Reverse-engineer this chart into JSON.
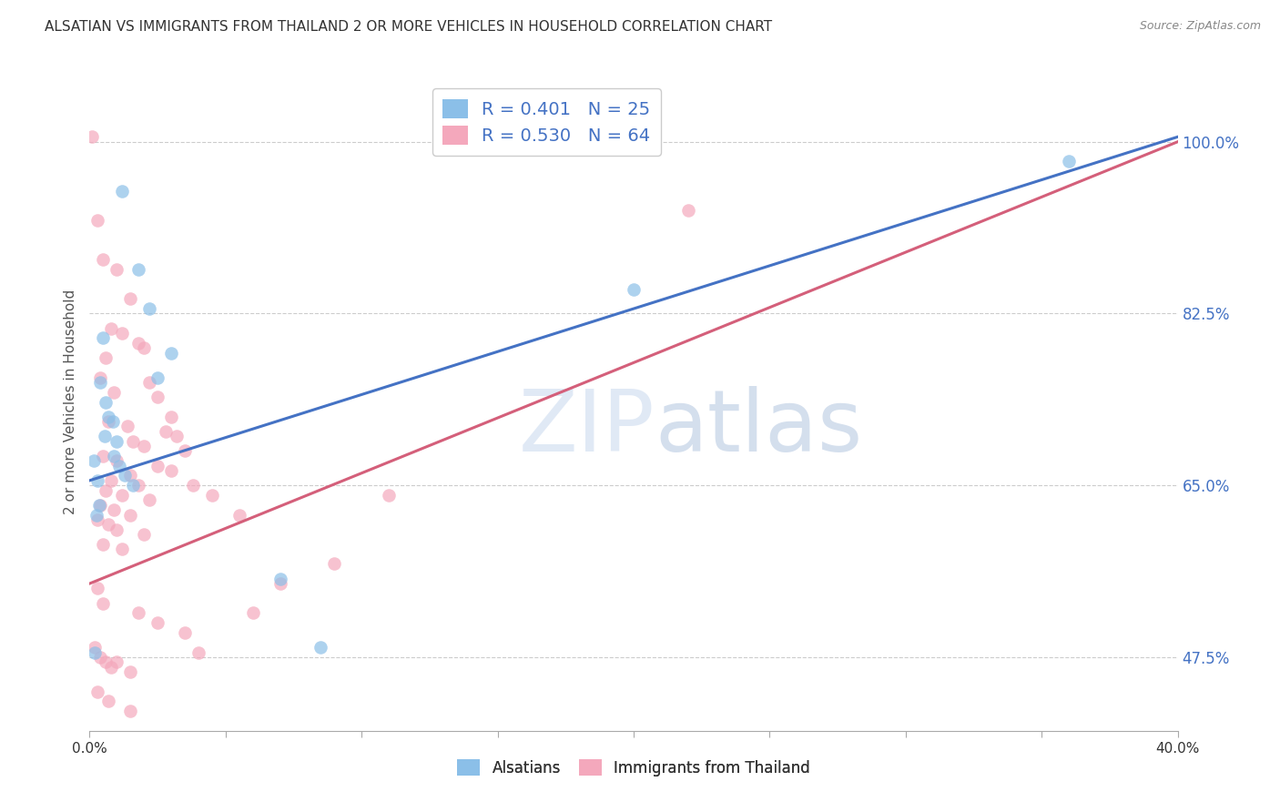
{
  "title": "ALSATIAN VS IMMIGRANTS FROM THAILAND 2 OR MORE VEHICLES IN HOUSEHOLD CORRELATION CHART",
  "source": "Source: ZipAtlas.com",
  "ylabel": "2 or more Vehicles in Household",
  "legend_label1": "Alsatians",
  "legend_label2": "Immigrants from Thailand",
  "R1": 0.401,
  "N1": 25,
  "R2": 0.53,
  "N2": 64,
  "color1": "#8BBFE8",
  "color2": "#F4A8BC",
  "line_color1": "#4472C4",
  "line_color2": "#D45F7A",
  "xlim": [
    0.0,
    40.0
  ],
  "ylim": [
    40.0,
    107.0
  ],
  "yticks": [
    47.5,
    65.0,
    82.5,
    100.0
  ],
  "xticks": [
    0.0,
    5.0,
    10.0,
    15.0,
    20.0,
    25.0,
    30.0,
    35.0,
    40.0
  ],
  "watermark_zip": "ZIP",
  "watermark_atlas": "atlas",
  "blue_scatter": [
    [
      0.15,
      67.5
    ],
    [
      0.5,
      80.0
    ],
    [
      1.2,
      95.0
    ],
    [
      1.8,
      87.0
    ],
    [
      2.2,
      83.0
    ],
    [
      0.3,
      65.5
    ],
    [
      0.4,
      75.5
    ],
    [
      0.55,
      70.0
    ],
    [
      0.6,
      73.5
    ],
    [
      0.7,
      72.0
    ],
    [
      0.85,
      71.5
    ],
    [
      1.0,
      69.5
    ],
    [
      0.9,
      68.0
    ],
    [
      1.1,
      67.0
    ],
    [
      1.3,
      66.0
    ],
    [
      1.6,
      65.0
    ],
    [
      2.5,
      76.0
    ],
    [
      3.0,
      78.5
    ],
    [
      0.35,
      63.0
    ],
    [
      0.25,
      62.0
    ],
    [
      0.2,
      48.0
    ],
    [
      7.0,
      55.5
    ],
    [
      8.5,
      48.5
    ],
    [
      20.0,
      85.0
    ],
    [
      36.0,
      98.0
    ]
  ],
  "pink_scatter": [
    [
      0.1,
      100.5
    ],
    [
      0.3,
      92.0
    ],
    [
      0.5,
      88.0
    ],
    [
      1.0,
      87.0
    ],
    [
      1.5,
      84.0
    ],
    [
      0.8,
      81.0
    ],
    [
      1.2,
      80.5
    ],
    [
      1.8,
      79.5
    ],
    [
      2.0,
      79.0
    ],
    [
      0.6,
      78.0
    ],
    [
      0.4,
      76.0
    ],
    [
      2.2,
      75.5
    ],
    [
      0.9,
      74.5
    ],
    [
      2.5,
      74.0
    ],
    [
      3.0,
      72.0
    ],
    [
      0.7,
      71.5
    ],
    [
      1.4,
      71.0
    ],
    [
      2.8,
      70.5
    ],
    [
      3.2,
      70.0
    ],
    [
      1.6,
      69.5
    ],
    [
      2.0,
      69.0
    ],
    [
      3.5,
      68.5
    ],
    [
      0.5,
      68.0
    ],
    [
      1.0,
      67.5
    ],
    [
      2.5,
      67.0
    ],
    [
      3.0,
      66.5
    ],
    [
      1.5,
      66.0
    ],
    [
      0.8,
      65.5
    ],
    [
      1.8,
      65.0
    ],
    [
      3.8,
      65.0
    ],
    [
      0.6,
      64.5
    ],
    [
      1.2,
      64.0
    ],
    [
      2.2,
      63.5
    ],
    [
      0.4,
      63.0
    ],
    [
      0.9,
      62.5
    ],
    [
      1.5,
      62.0
    ],
    [
      0.3,
      61.5
    ],
    [
      0.7,
      61.0
    ],
    [
      1.0,
      60.5
    ],
    [
      2.0,
      60.0
    ],
    [
      0.5,
      59.0
    ],
    [
      1.2,
      58.5
    ],
    [
      4.5,
      64.0
    ],
    [
      5.5,
      62.0
    ],
    [
      7.0,
      55.0
    ],
    [
      9.0,
      57.0
    ],
    [
      0.2,
      48.5
    ],
    [
      0.4,
      47.5
    ],
    [
      0.6,
      47.0
    ],
    [
      0.8,
      46.5
    ],
    [
      1.0,
      47.0
    ],
    [
      1.5,
      46.0
    ],
    [
      0.3,
      54.5
    ],
    [
      0.5,
      53.0
    ],
    [
      1.8,
      52.0
    ],
    [
      2.5,
      51.0
    ],
    [
      3.5,
      50.0
    ],
    [
      0.3,
      44.0
    ],
    [
      0.7,
      43.0
    ],
    [
      1.5,
      42.0
    ],
    [
      4.0,
      48.0
    ],
    [
      6.0,
      52.0
    ],
    [
      11.0,
      64.0
    ],
    [
      22.0,
      93.0
    ]
  ],
  "blue_line_x": [
    0.0,
    40.0
  ],
  "blue_line_y": [
    65.5,
    100.5
  ],
  "pink_line_x": [
    0.0,
    40.0
  ],
  "pink_line_y": [
    55.0,
    100.0
  ]
}
